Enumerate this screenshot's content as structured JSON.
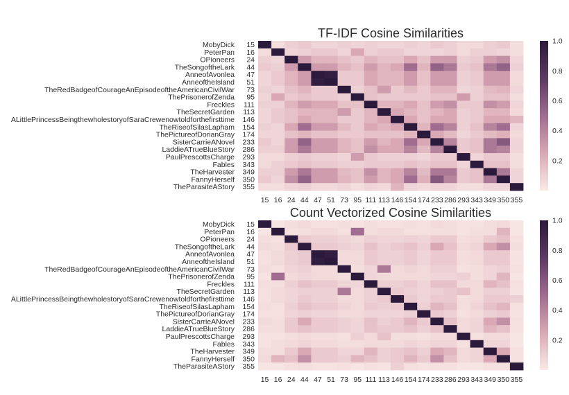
{
  "chart_data": [
    {
      "type": "heatmap",
      "title": "TF-IDF Cosine Similarities",
      "rows": [
        {
          "name": "MobyDick",
          "id": "15"
        },
        {
          "name": "PeterPan",
          "id": "16"
        },
        {
          "name": "OPioneers",
          "id": "24"
        },
        {
          "name": "TheSongoftheLark",
          "id": "44"
        },
        {
          "name": "AnneofAvonlea",
          "id": "47"
        },
        {
          "name": "AnneoftheIsland",
          "id": "51"
        },
        {
          "name": "TheRedBadgeofCourageAnEpisodeoftheAmericanCivilWar",
          "id": "73"
        },
        {
          "name": "ThePrisonerofZenda",
          "id": "95"
        },
        {
          "name": "Freckles",
          "id": "111"
        },
        {
          "name": "TheSecretGarden",
          "id": "113"
        },
        {
          "name": "ALittlePrincessBeingthewholestoryofSaraCrewenowtoldforthefirsttime",
          "id": "146"
        },
        {
          "name": "TheRiseofSilasLapham",
          "id": "154"
        },
        {
          "name": "ThePictureofDorianGray",
          "id": "174"
        },
        {
          "name": "SisterCarrieANovel",
          "id": "233"
        },
        {
          "name": "LaddieATrueBlueStory",
          "id": "286"
        },
        {
          "name": "PaulPrescottsCharge",
          "id": "293"
        },
        {
          "name": "Fables",
          "id": "343"
        },
        {
          "name": "TheHarvester",
          "id": "349"
        },
        {
          "name": "FannyHerself",
          "id": "350"
        },
        {
          "name": "TheParasiteAStory",
          "id": "355"
        }
      ],
      "columns": [
        "15",
        "16",
        "24",
        "44",
        "47",
        "51",
        "73",
        "95",
        "111",
        "113",
        "146",
        "154",
        "174",
        "233",
        "286",
        "293",
        "343",
        "349",
        "350",
        "355"
      ],
      "values": [
        [
          1.0,
          0.05,
          0.1,
          0.12,
          0.08,
          0.08,
          0.1,
          0.08,
          0.1,
          0.08,
          0.08,
          0.1,
          0.08,
          0.12,
          0.1,
          0.06,
          0.06,
          0.1,
          0.12,
          0.05
        ],
        [
          0.05,
          1.0,
          0.08,
          0.1,
          0.12,
          0.12,
          0.08,
          0.25,
          0.1,
          0.12,
          0.12,
          0.08,
          0.08,
          0.08,
          0.1,
          0.06,
          0.1,
          0.1,
          0.08,
          0.05
        ],
        [
          0.1,
          0.08,
          1.0,
          0.3,
          0.2,
          0.2,
          0.15,
          0.12,
          0.2,
          0.15,
          0.15,
          0.25,
          0.15,
          0.3,
          0.3,
          0.1,
          0.12,
          0.3,
          0.35,
          0.08
        ],
        [
          0.12,
          0.1,
          0.3,
          1.0,
          0.3,
          0.3,
          0.2,
          0.15,
          0.3,
          0.2,
          0.25,
          0.5,
          0.2,
          0.55,
          0.45,
          0.12,
          0.15,
          0.45,
          0.55,
          0.1
        ],
        [
          0.08,
          0.12,
          0.2,
          0.3,
          1.0,
          0.97,
          0.12,
          0.12,
          0.25,
          0.2,
          0.2,
          0.3,
          0.15,
          0.3,
          0.3,
          0.1,
          0.12,
          0.3,
          0.3,
          0.06
        ],
        [
          0.08,
          0.12,
          0.2,
          0.3,
          0.97,
          1.0,
          0.12,
          0.12,
          0.25,
          0.2,
          0.2,
          0.3,
          0.15,
          0.3,
          0.3,
          0.1,
          0.12,
          0.3,
          0.3,
          0.06
        ],
        [
          0.1,
          0.08,
          0.15,
          0.2,
          0.12,
          0.12,
          1.0,
          0.1,
          0.15,
          0.3,
          0.12,
          0.18,
          0.12,
          0.2,
          0.2,
          0.08,
          0.1,
          0.18,
          0.2,
          0.08
        ],
        [
          0.08,
          0.25,
          0.12,
          0.15,
          0.12,
          0.12,
          0.1,
          1.0,
          0.15,
          0.12,
          0.12,
          0.12,
          0.12,
          0.15,
          0.15,
          0.3,
          0.1,
          0.15,
          0.15,
          0.05
        ],
        [
          0.1,
          0.1,
          0.2,
          0.3,
          0.25,
          0.25,
          0.15,
          0.15,
          1.0,
          0.2,
          0.2,
          0.25,
          0.15,
          0.3,
          0.35,
          0.12,
          0.12,
          0.35,
          0.3,
          0.08
        ],
        [
          0.08,
          0.12,
          0.15,
          0.2,
          0.2,
          0.2,
          0.3,
          0.12,
          0.2,
          1.0,
          0.25,
          0.2,
          0.15,
          0.2,
          0.25,
          0.1,
          0.12,
          0.2,
          0.2,
          0.06
        ],
        [
          0.08,
          0.12,
          0.15,
          0.25,
          0.2,
          0.2,
          0.12,
          0.12,
          0.2,
          0.25,
          1.0,
          0.25,
          0.15,
          0.25,
          0.25,
          0.1,
          0.12,
          0.25,
          0.25,
          0.2
        ],
        [
          0.1,
          0.08,
          0.25,
          0.5,
          0.3,
          0.3,
          0.18,
          0.12,
          0.25,
          0.2,
          0.25,
          1.0,
          0.2,
          0.5,
          0.4,
          0.1,
          0.15,
          0.4,
          0.5,
          0.08
        ],
        [
          0.08,
          0.08,
          0.15,
          0.2,
          0.15,
          0.15,
          0.12,
          0.12,
          0.15,
          0.15,
          0.15,
          0.2,
          1.0,
          0.25,
          0.18,
          0.08,
          0.12,
          0.18,
          0.22,
          0.06
        ],
        [
          0.12,
          0.08,
          0.3,
          0.55,
          0.3,
          0.3,
          0.2,
          0.15,
          0.3,
          0.2,
          0.25,
          0.5,
          0.25,
          1.0,
          0.4,
          0.12,
          0.15,
          0.45,
          0.6,
          0.08
        ],
        [
          0.1,
          0.1,
          0.3,
          0.45,
          0.3,
          0.3,
          0.2,
          0.15,
          0.35,
          0.25,
          0.25,
          0.4,
          0.18,
          0.4,
          1.0,
          0.12,
          0.15,
          0.45,
          0.4,
          0.08
        ],
        [
          0.06,
          0.06,
          0.1,
          0.12,
          0.1,
          0.1,
          0.08,
          0.3,
          0.12,
          0.1,
          0.1,
          0.1,
          0.08,
          0.12,
          0.12,
          1.0,
          0.08,
          0.12,
          0.12,
          0.05
        ],
        [
          0.06,
          0.1,
          0.12,
          0.15,
          0.12,
          0.12,
          0.1,
          0.1,
          0.12,
          0.12,
          0.12,
          0.15,
          0.12,
          0.15,
          0.15,
          0.08,
          1.0,
          0.15,
          0.15,
          0.05
        ],
        [
          0.1,
          0.1,
          0.3,
          0.45,
          0.3,
          0.3,
          0.18,
          0.15,
          0.35,
          0.2,
          0.25,
          0.4,
          0.18,
          0.45,
          0.45,
          0.12,
          0.15,
          1.0,
          0.45,
          0.08
        ],
        [
          0.12,
          0.08,
          0.35,
          0.55,
          0.3,
          0.3,
          0.2,
          0.15,
          0.3,
          0.2,
          0.25,
          0.5,
          0.22,
          0.6,
          0.4,
          0.12,
          0.15,
          0.45,
          1.0,
          0.08
        ],
        [
          0.05,
          0.05,
          0.08,
          0.1,
          0.06,
          0.06,
          0.08,
          0.05,
          0.08,
          0.06,
          0.2,
          0.08,
          0.06,
          0.08,
          0.08,
          0.05,
          0.05,
          0.08,
          0.08,
          1.0
        ]
      ],
      "colorbar": {
        "range": [
          0,
          1.0
        ],
        "ticks": [
          "1.0",
          "0.8",
          "0.6",
          "0.4",
          "0.2"
        ]
      },
      "colormap": [
        "#faeae7",
        "#d9a8b4",
        "#a06c8f",
        "#5d3965",
        "#2b1a3c"
      ]
    },
    {
      "type": "heatmap",
      "title": "Count Vectorized Cosine Similarities",
      "rows": [
        {
          "name": "MobyDick",
          "id": "15"
        },
        {
          "name": "PeterPan",
          "id": "16"
        },
        {
          "name": "OPioneers",
          "id": "24"
        },
        {
          "name": "TheSongoftheLark",
          "id": "44"
        },
        {
          "name": "AnneofAvonlea",
          "id": "47"
        },
        {
          "name": "AnneoftheIsland",
          "id": "51"
        },
        {
          "name": "TheRedBadgeofCourageAnEpisodeoftheAmericanCivilWar",
          "id": "73"
        },
        {
          "name": "ThePrisonerofZenda",
          "id": "95"
        },
        {
          "name": "Freckles",
          "id": "111"
        },
        {
          "name": "TheSecretGarden",
          "id": "113"
        },
        {
          "name": "ALittlePrincessBeingthewholestoryofSaraCrewenowtoldforthefirsttime",
          "id": "146"
        },
        {
          "name": "TheRiseofSilasLapham",
          "id": "154"
        },
        {
          "name": "ThePictureofDorianGray",
          "id": "174"
        },
        {
          "name": "SisterCarrieANovel",
          "id": "233"
        },
        {
          "name": "LaddieATrueBlueStory",
          "id": "286"
        },
        {
          "name": "PaulPrescottsCharge",
          "id": "293"
        },
        {
          "name": "Fables",
          "id": "343"
        },
        {
          "name": "TheHarvester",
          "id": "349"
        },
        {
          "name": "FannyHerself",
          "id": "350"
        },
        {
          "name": "TheParasiteAStory",
          "id": "355"
        }
      ],
      "columns": [
        "15",
        "16",
        "24",
        "44",
        "47",
        "51",
        "73",
        "95",
        "111",
        "113",
        "146",
        "154",
        "174",
        "233",
        "286",
        "293",
        "343",
        "349",
        "350",
        "355"
      ],
      "values": [
        [
          1.0,
          0.02,
          0.05,
          0.06,
          0.04,
          0.04,
          0.05,
          0.03,
          0.05,
          0.04,
          0.04,
          0.05,
          0.04,
          0.06,
          0.05,
          0.03,
          0.03,
          0.05,
          0.06,
          0.02
        ],
        [
          0.02,
          1.0,
          0.04,
          0.05,
          0.06,
          0.06,
          0.04,
          0.5,
          0.05,
          0.06,
          0.06,
          0.04,
          0.04,
          0.05,
          0.05,
          0.03,
          0.05,
          0.05,
          0.2,
          0.02
        ],
        [
          0.05,
          0.04,
          1.0,
          0.12,
          0.1,
          0.1,
          0.08,
          0.06,
          0.1,
          0.08,
          0.08,
          0.1,
          0.08,
          0.12,
          0.12,
          0.05,
          0.06,
          0.12,
          0.15,
          0.04
        ],
        [
          0.06,
          0.05,
          0.12,
          1.0,
          0.12,
          0.12,
          0.1,
          0.08,
          0.15,
          0.1,
          0.12,
          0.15,
          0.1,
          0.25,
          0.15,
          0.06,
          0.08,
          0.25,
          0.35,
          0.05
        ],
        [
          0.04,
          0.06,
          0.1,
          0.12,
          1.0,
          0.97,
          0.06,
          0.06,
          0.12,
          0.1,
          0.1,
          0.12,
          0.08,
          0.12,
          0.12,
          0.05,
          0.06,
          0.12,
          0.12,
          0.03
        ],
        [
          0.04,
          0.06,
          0.1,
          0.12,
          0.97,
          1.0,
          0.06,
          0.06,
          0.12,
          0.1,
          0.1,
          0.12,
          0.08,
          0.12,
          0.12,
          0.05,
          0.06,
          0.12,
          0.12,
          0.03
        ],
        [
          0.05,
          0.04,
          0.08,
          0.1,
          0.06,
          0.06,
          1.0,
          0.05,
          0.08,
          0.45,
          0.06,
          0.08,
          0.06,
          0.1,
          0.1,
          0.04,
          0.05,
          0.08,
          0.1,
          0.04
        ],
        [
          0.03,
          0.5,
          0.06,
          0.08,
          0.06,
          0.06,
          0.05,
          1.0,
          0.08,
          0.06,
          0.06,
          0.06,
          0.06,
          0.08,
          0.08,
          0.1,
          0.05,
          0.08,
          0.2,
          0.02
        ],
        [
          0.05,
          0.05,
          0.1,
          0.15,
          0.12,
          0.12,
          0.08,
          0.08,
          1.0,
          0.1,
          0.1,
          0.12,
          0.08,
          0.15,
          0.15,
          0.06,
          0.06,
          0.2,
          0.15,
          0.04
        ],
        [
          0.04,
          0.06,
          0.08,
          0.1,
          0.1,
          0.1,
          0.45,
          0.06,
          0.1,
          1.0,
          0.12,
          0.1,
          0.08,
          0.1,
          0.12,
          0.15,
          0.06,
          0.1,
          0.1,
          0.03
        ],
        [
          0.04,
          0.06,
          0.08,
          0.12,
          0.1,
          0.1,
          0.06,
          0.06,
          0.1,
          0.12,
          1.0,
          0.12,
          0.08,
          0.12,
          0.12,
          0.05,
          0.06,
          0.12,
          0.12,
          0.1
        ],
        [
          0.05,
          0.04,
          0.1,
          0.15,
          0.12,
          0.12,
          0.08,
          0.06,
          0.12,
          0.1,
          0.12,
          1.0,
          0.1,
          0.2,
          0.15,
          0.05,
          0.08,
          0.15,
          0.2,
          0.04
        ],
        [
          0.04,
          0.04,
          0.08,
          0.1,
          0.08,
          0.08,
          0.06,
          0.06,
          0.08,
          0.08,
          0.08,
          0.1,
          1.0,
          0.12,
          0.1,
          0.04,
          0.06,
          0.1,
          0.12,
          0.03
        ],
        [
          0.06,
          0.05,
          0.12,
          0.25,
          0.12,
          0.12,
          0.1,
          0.08,
          0.15,
          0.1,
          0.12,
          0.2,
          0.12,
          1.0,
          0.15,
          0.06,
          0.08,
          0.25,
          0.35,
          0.04
        ],
        [
          0.05,
          0.05,
          0.12,
          0.15,
          0.12,
          0.12,
          0.1,
          0.08,
          0.15,
          0.12,
          0.12,
          0.15,
          0.1,
          0.15,
          1.0,
          0.06,
          0.08,
          0.2,
          0.15,
          0.04
        ],
        [
          0.03,
          0.03,
          0.05,
          0.06,
          0.05,
          0.05,
          0.04,
          0.1,
          0.06,
          0.15,
          0.05,
          0.05,
          0.04,
          0.06,
          0.06,
          1.0,
          0.04,
          0.06,
          0.06,
          0.02
        ],
        [
          0.03,
          0.05,
          0.06,
          0.08,
          0.06,
          0.06,
          0.05,
          0.05,
          0.06,
          0.06,
          0.06,
          0.08,
          0.06,
          0.08,
          0.08,
          0.04,
          1.0,
          0.08,
          0.08,
          0.02
        ],
        [
          0.05,
          0.05,
          0.12,
          0.25,
          0.12,
          0.12,
          0.08,
          0.08,
          0.2,
          0.1,
          0.12,
          0.15,
          0.1,
          0.25,
          0.2,
          0.06,
          0.08,
          1.0,
          0.25,
          0.04
        ],
        [
          0.06,
          0.2,
          0.15,
          0.35,
          0.12,
          0.12,
          0.1,
          0.2,
          0.15,
          0.1,
          0.12,
          0.2,
          0.12,
          0.35,
          0.15,
          0.06,
          0.08,
          0.25,
          1.0,
          0.04
        ],
        [
          0.02,
          0.02,
          0.04,
          0.05,
          0.03,
          0.03,
          0.04,
          0.02,
          0.04,
          0.03,
          0.1,
          0.04,
          0.03,
          0.04,
          0.04,
          0.02,
          0.02,
          0.04,
          0.04,
          1.0
        ]
      ],
      "colorbar": {
        "range": [
          0,
          1.0
        ],
        "ticks": [
          "1.0",
          "0.8",
          "0.6",
          "0.4",
          "0.2"
        ]
      },
      "colormap": [
        "#faeae7",
        "#d9a8b4",
        "#a06c8f",
        "#5d3965",
        "#2b1a3c"
      ]
    }
  ]
}
